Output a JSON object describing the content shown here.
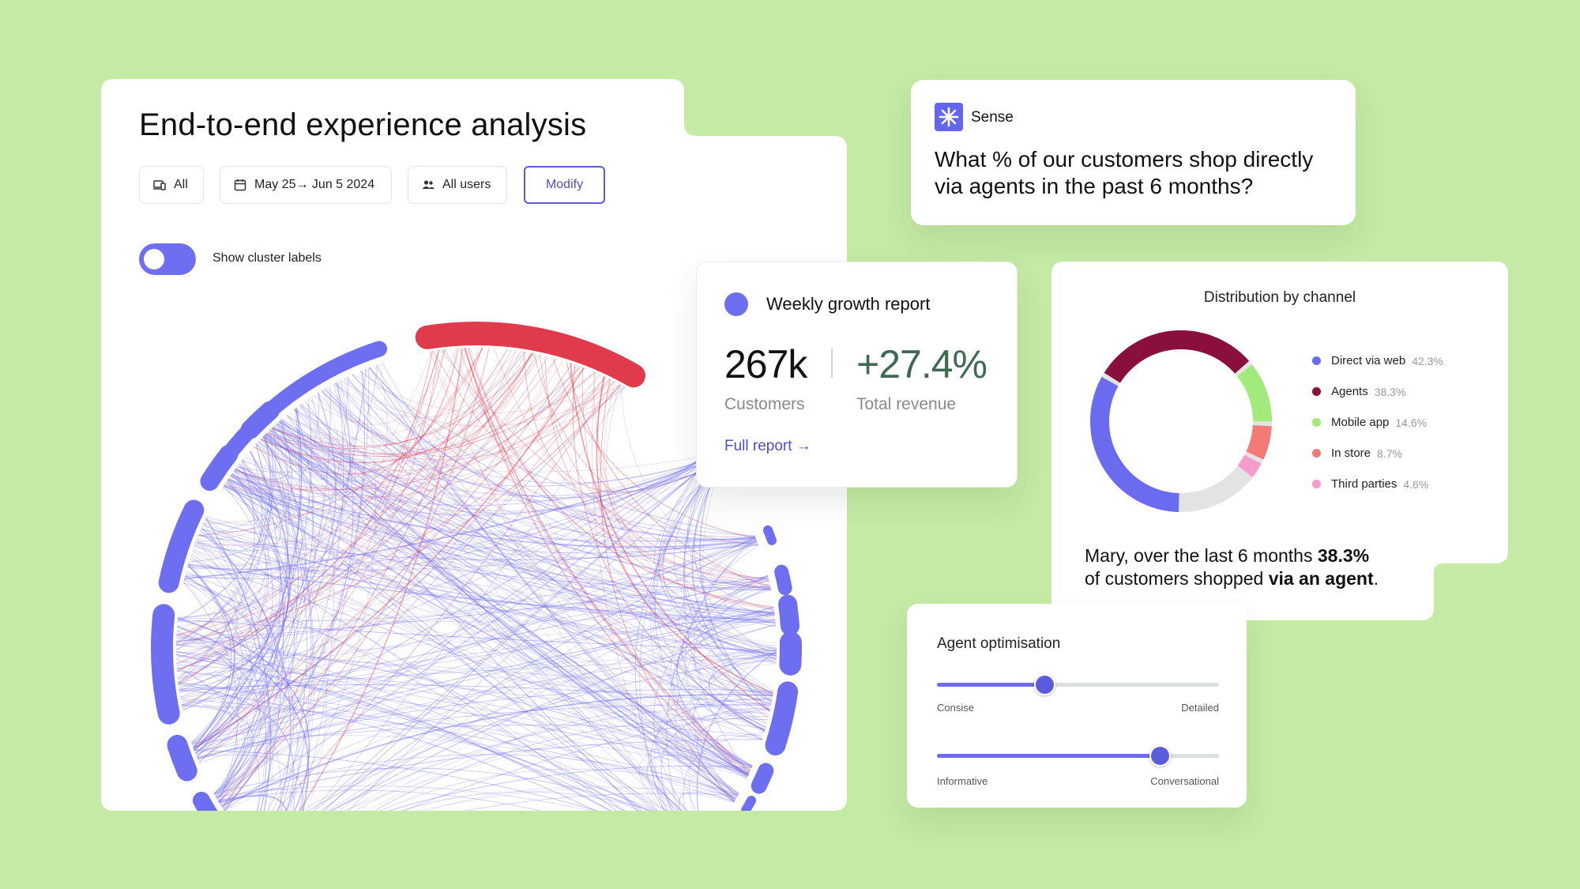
{
  "analysis": {
    "title": "End-to-end experience analysis",
    "filters": {
      "all": "All",
      "date": "May 25→ Jun 5 2024",
      "users": "All users"
    },
    "modify_label": "Modify",
    "toggle_label": "Show cluster labels",
    "toggle_on": true,
    "accent_color": "#6e6ef1",
    "highlight_color": "#e03b4b"
  },
  "sense": {
    "name": "Sense",
    "question": "What % of our customers shop directly via agents in the past 6 months?"
  },
  "growth": {
    "title": "Weekly growth report",
    "customers_value": "267k",
    "customers_label": "Customers",
    "revenue_value": "+27.4%",
    "revenue_label": "Total revenue",
    "link_label": "Full report →"
  },
  "distribution": {
    "title": "Distribution by channel",
    "summary_pre": "Mary, over the last 6 months ",
    "summary_bold1": "38.3%",
    "summary_mid": "of customers shopped ",
    "summary_bold2": "via an agent",
    "summary_end": "."
  },
  "chart_data": {
    "type": "pie",
    "title": "Distribution by channel",
    "categories": [
      "Direct via web",
      "Agents",
      "Mobile app",
      "In store",
      "Third parties"
    ],
    "values": [
      42.3,
      38.3,
      14.6,
      8.7,
      4.6
    ],
    "labels": [
      "42.3%",
      "38.3%",
      "14.6%",
      "8.7%",
      "4.6%"
    ],
    "colors": [
      "#6b6bf0",
      "#8a0f3c",
      "#a3ea7c",
      "#f47a78",
      "#f59ccd"
    ],
    "legend": "right"
  },
  "agent": {
    "title": "Agent optimisation",
    "slider1": {
      "min_label": "Consise",
      "max_label": "Detailed",
      "value": 0.38
    },
    "slider2": {
      "min_label": "Informative",
      "max_label": "Conversational",
      "value": 0.79
    }
  }
}
